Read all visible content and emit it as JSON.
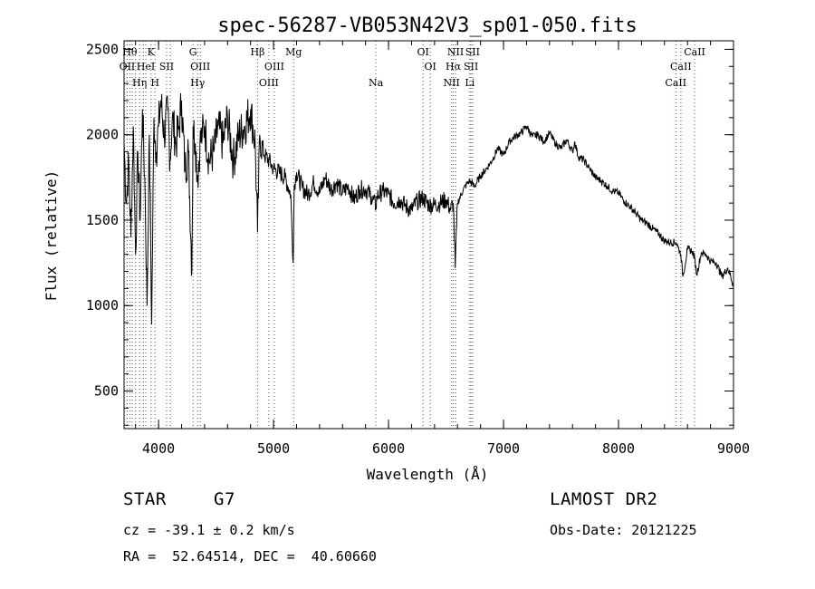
{
  "chart_data": {
    "type": "line",
    "title": "spec-56287-VB053N42V3_sp01-050.fits",
    "xlabel": "Wavelength (Å)",
    "ylabel": "Flux (relative)",
    "xlim": [
      3700,
      9000
    ],
    "ylim": [
      280,
      2550
    ],
    "xticks": [
      4000,
      5000,
      6000,
      7000,
      8000,
      9000
    ],
    "yticks": [
      500,
      1000,
      1500,
      2000,
      2500
    ],
    "grid": false,
    "series": [
      {
        "values_note": "",
        "x": [
          3700,
          3720,
          3740,
          3760,
          3780,
          3800,
          3820,
          3840,
          3860,
          3880,
          3900,
          3920,
          3940,
          3960,
          3980,
          4000,
          4020,
          4050,
          4080,
          4100,
          4120,
          4150,
          4180,
          4200,
          4230,
          4260,
          4290,
          4300,
          4320,
          4340,
          4360,
          4380,
          4400,
          4440,
          4480,
          4520,
          4560,
          4600,
          4650,
          4700,
          4750,
          4800,
          4840,
          4861,
          4880,
          4920,
          4960,
          5000,
          5050,
          5100,
          5150,
          5170,
          5180,
          5200,
          5250,
          5300,
          5350,
          5400,
          5450,
          5500,
          5550,
          5600,
          5650,
          5700,
          5750,
          5800,
          5850,
          5890,
          5900,
          5950,
          6000,
          6050,
          6100,
          6150,
          6200,
          6250,
          6300,
          6350,
          6400,
          6450,
          6500,
          6540,
          6563,
          6580,
          6600,
          6650,
          6700,
          6750,
          6800,
          6850,
          6900,
          6950,
          7000,
          7050,
          7100,
          7150,
          7200,
          7250,
          7300,
          7350,
          7400,
          7450,
          7500,
          7550,
          7600,
          7620,
          7650,
          7700,
          7750,
          7800,
          7850,
          7900,
          7950,
          8000,
          8050,
          8100,
          8150,
          8200,
          8250,
          8300,
          8350,
          8400,
          8450,
          8500,
          8520,
          8542,
          8560,
          8600,
          8640,
          8662,
          8680,
          8720,
          8760,
          8800,
          8850,
          8900,
          8950,
          9000
        ],
        "y": [
          1950,
          1600,
          1850,
          1400,
          2050,
          1300,
          1900,
          1500,
          2150,
          1750,
          1000,
          2000,
          890,
          2100,
          1900,
          2050,
          2200,
          2000,
          2150,
          1850,
          2100,
          1950,
          2050,
          2200,
          1800,
          1900,
          1200,
          2050,
          1950,
          1750,
          1950,
          2000,
          2050,
          1850,
          1900,
          2050,
          1950,
          2100,
          1850,
          2000,
          2050,
          2150,
          1950,
          1430,
          2000,
          1880,
          1850,
          1800,
          1780,
          1750,
          1650,
          1250,
          1700,
          1780,
          1690,
          1650,
          1720,
          1660,
          1750,
          1680,
          1720,
          1660,
          1700,
          1620,
          1680,
          1680,
          1640,
          1580,
          1640,
          1670,
          1650,
          1600,
          1620,
          1580,
          1560,
          1610,
          1630,
          1590,
          1590,
          1600,
          1620,
          1560,
          1600,
          1220,
          1600,
          1680,
          1730,
          1700,
          1760,
          1800,
          1850,
          1920,
          1880,
          1960,
          1990,
          2010,
          2050,
          1990,
          2000,
          1960,
          2010,
          1950,
          1920,
          1970,
          1900,
          1960,
          1870,
          1850,
          1800,
          1750,
          1730,
          1700,
          1670,
          1660,
          1610,
          1580,
          1540,
          1500,
          1480,
          1450,
          1420,
          1380,
          1370,
          1370,
          1340,
          1300,
          1170,
          1330,
          1320,
          1280,
          1180,
          1310,
          1300,
          1260,
          1250,
          1170,
          1220,
          1120
        ]
      }
    ],
    "lines": {
      "grey": [
        {
          "x": 3727,
          "label": "OII",
          "row": 2
        },
        {
          "x": 3750,
          "label": "Hθ",
          "row": 1
        },
        {
          "x": 3771,
          "label": "",
          "row": 0
        },
        {
          "x": 3798,
          "label": "",
          "row": 0
        },
        {
          "x": 3835,
          "label": "Hη",
          "row": 3
        },
        {
          "x": 3869,
          "label": "",
          "row": 0
        },
        {
          "x": 3889,
          "label": "HeI",
          "row": 2
        },
        {
          "x": 3934,
          "label": "K",
          "row": 1
        },
        {
          "x": 3969,
          "label": "H",
          "row": 3
        },
        {
          "x": 4070,
          "label": "SII",
          "row": 2
        },
        {
          "x": 4102,
          "label": "",
          "row": 0
        },
        {
          "x": 4300,
          "label": "G",
          "row": 1
        },
        {
          "x": 4340,
          "label": "Hγ",
          "row": 3
        },
        {
          "x": 4363,
          "label": "OIII",
          "row": 2
        },
        {
          "x": 4861,
          "label": "Hβ",
          "row": 1
        },
        {
          "x": 4959,
          "label": "OIII",
          "row": 3
        },
        {
          "x": 5007,
          "label": "OIII",
          "row": 2
        },
        {
          "x": 5175,
          "label": "Mg",
          "row": 1
        },
        {
          "x": 5890,
          "label": "Na",
          "row": 3
        },
        {
          "x": 6300,
          "label": "OI",
          "row": 1
        },
        {
          "x": 6363,
          "label": "OI",
          "row": 2
        },
        {
          "x": 6548,
          "label": "NII",
          "row": 3
        },
        {
          "x": 6563,
          "label": "Hα",
          "row": 2
        },
        {
          "x": 6583,
          "label": "NII",
          "row": 1
        },
        {
          "x": 6707,
          "label": "Li",
          "row": 3
        },
        {
          "x": 6717,
          "label": "SII",
          "row": 2
        },
        {
          "x": 6731,
          "label": "SII",
          "row": 1
        }
      ],
      "red": [
        {
          "x": 8498,
          "label": "CaII",
          "row": 3
        },
        {
          "x": 8542,
          "label": "CaII",
          "row": 2
        },
        {
          "x": 8662,
          "label": "CaII",
          "row": 1
        }
      ]
    },
    "line_colors": {
      "grey": "#555555",
      "red": "#cc3333"
    }
  },
  "info": {
    "object_type": "STAR",
    "subclass": "G7",
    "survey": "LAMOST DR2",
    "redshift": "cz = -39.1 ± 0.2 km/s",
    "obs_date": "Obs-Date: 20121225",
    "coords": "RA =  52.64514, DEC =  40.60660"
  }
}
